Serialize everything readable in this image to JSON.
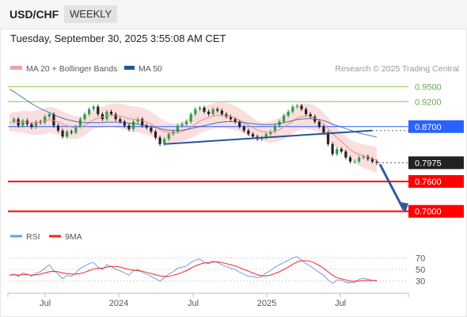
{
  "header": {
    "symbol": "USD/CHF",
    "period": "WEEKLY"
  },
  "datetime": "Tuesday, September 30, 2025 3:55:08 AM CET",
  "credit": "Research © 2025 Trading Central",
  "legend": {
    "ma": "MA 20 + Bollinger Bands",
    "ma50": "MA 50",
    "rsi": "RSI",
    "ma9": "9MA"
  },
  "colors": {
    "ma_band": "#f4a0a0",
    "ma50": "#27549c",
    "resistance": "#2962ff",
    "support": "#ff0000",
    "target_line": "#8bc34a",
    "candle_up": "#2e9e4a",
    "candle_down": "#222222",
    "projection": "#2f5c9e",
    "rsi": "#6d9ee8",
    "rsi_ma": "#ff2020"
  },
  "chart_data": {
    "type": "line",
    "title": "USD/CHF",
    "timeframe": "WEEKLY",
    "x_ticks": [
      "Jul",
      "2024",
      "Jul",
      "2025",
      "Jul"
    ],
    "ylim": [
      0.682,
      0.965
    ],
    "levels": [
      {
        "value": 0.95,
        "label": "0.9500",
        "kind": "target"
      },
      {
        "value": 0.92,
        "label": "0.9200",
        "kind": "target"
      },
      {
        "value": 0.87,
        "label": "0.8700",
        "kind": "resistance"
      },
      {
        "value": 0.7975,
        "label": "0.7975",
        "kind": "last"
      },
      {
        "value": 0.76,
        "label": "0.7600",
        "kind": "support"
      },
      {
        "value": 0.7,
        "label": "0.7000",
        "kind": "support"
      }
    ],
    "last_price": 0.7975,
    "price_path": [
      0.88,
      0.885,
      0.872,
      0.882,
      0.875,
      0.869,
      0.88,
      0.878,
      0.89,
      0.895,
      0.872,
      0.862,
      0.85,
      0.86,
      0.858,
      0.87,
      0.885,
      0.895,
      0.905,
      0.91,
      0.895,
      0.885,
      0.9,
      0.895,
      0.885,
      0.88,
      0.872,
      0.865,
      0.88,
      0.885,
      0.872,
      0.868,
      0.86,
      0.848,
      0.835,
      0.845,
      0.855,
      0.86,
      0.872,
      0.875,
      0.88,
      0.895,
      0.905,
      0.908,
      0.9,
      0.895,
      0.905,
      0.902,
      0.895,
      0.89,
      0.885,
      0.88,
      0.87,
      0.862,
      0.855,
      0.85,
      0.845,
      0.848,
      0.855,
      0.86,
      0.872,
      0.88,
      0.892,
      0.9,
      0.91,
      0.912,
      0.905,
      0.895,
      0.89,
      0.88,
      0.87,
      0.858,
      0.835,
      0.815,
      0.825,
      0.82,
      0.808,
      0.8,
      0.8,
      0.808,
      0.81,
      0.805,
      0.8,
      0.7975
    ],
    "ma20": [
      0.878,
      0.88,
      0.879,
      0.88,
      0.879,
      0.877,
      0.878,
      0.879,
      0.881,
      0.884,
      0.882,
      0.879,
      0.875,
      0.872,
      0.869,
      0.868,
      0.869,
      0.873,
      0.878,
      0.884,
      0.887,
      0.889,
      0.892,
      0.893,
      0.892,
      0.891,
      0.889,
      0.886,
      0.885,
      0.884,
      0.882,
      0.879,
      0.875,
      0.87,
      0.864,
      0.86,
      0.858,
      0.857,
      0.858,
      0.86,
      0.864,
      0.869,
      0.875,
      0.881,
      0.885,
      0.888,
      0.891,
      0.893,
      0.893,
      0.892,
      0.89,
      0.887,
      0.883,
      0.878,
      0.873,
      0.868,
      0.863,
      0.86,
      0.859,
      0.859,
      0.861,
      0.864,
      0.869,
      0.875,
      0.881,
      0.887,
      0.89,
      0.891,
      0.89,
      0.887,
      0.882,
      0.875,
      0.866,
      0.856,
      0.848,
      0.84,
      0.832,
      0.824,
      0.818,
      0.814,
      0.811,
      0.808,
      0.806,
      0.803
    ],
    "ma50": [
      0.945,
      0.94,
      0.934,
      0.928,
      0.922,
      0.916,
      0.911,
      0.906,
      0.902,
      0.898,
      0.894,
      0.89,
      0.887,
      0.884,
      0.882,
      0.88,
      0.879,
      0.878,
      0.878,
      0.878,
      0.878,
      0.878,
      0.879,
      0.879,
      0.879,
      0.879,
      0.878,
      0.877,
      0.876,
      0.875,
      0.874,
      0.872,
      0.87,
      0.868,
      0.866,
      0.864,
      0.863,
      0.862,
      0.862,
      0.863,
      0.864,
      0.866,
      0.868,
      0.87,
      0.872,
      0.874,
      0.876,
      0.878,
      0.879,
      0.88,
      0.88,
      0.88,
      0.879,
      0.878,
      0.877,
      0.876,
      0.875,
      0.874,
      0.874,
      0.874,
      0.875,
      0.876,
      0.878,
      0.88,
      0.882,
      0.884,
      0.885,
      0.886,
      0.886,
      0.885,
      0.884,
      0.882,
      0.879,
      0.875,
      0.872,
      0.869,
      0.866,
      0.863,
      0.86,
      0.857,
      0.855,
      0.853,
      0.851,
      0.849
    ],
    "rsi": {
      "ticks": [
        70,
        50,
        30
      ],
      "ylim": [
        20,
        80
      ],
      "values": [
        40,
        42,
        38,
        44,
        42,
        38,
        44,
        46,
        52,
        58,
        48,
        42,
        34,
        40,
        38,
        44,
        52,
        56,
        60,
        62,
        54,
        50,
        58,
        55,
        50,
        48,
        44,
        40,
        48,
        50,
        45,
        42,
        38,
        34,
        30,
        36,
        42,
        46,
        52,
        54,
        56,
        62,
        66,
        68,
        62,
        60,
        64,
        62,
        58,
        55,
        52,
        50,
        45,
        42,
        38,
        38,
        36,
        38,
        44,
        48,
        54,
        58,
        62,
        66,
        70,
        72,
        66,
        60,
        56,
        50,
        45,
        40,
        32,
        26,
        32,
        32,
        28,
        27,
        28,
        33,
        35,
        33,
        31,
        30
      ],
      "ma9": [
        40,
        41,
        40,
        41,
        41,
        40,
        41,
        42,
        44,
        46,
        47,
        46,
        44,
        43,
        42,
        42,
        43,
        45,
        48,
        51,
        52,
        52,
        54,
        55,
        55,
        54,
        52,
        50,
        49,
        48,
        47,
        45,
        43,
        41,
        39,
        38,
        38,
        40,
        42,
        45,
        48,
        52,
        56,
        59,
        61,
        62,
        63,
        63,
        62,
        60,
        58,
        56,
        53,
        50,
        47,
        44,
        41,
        39,
        39,
        40,
        43,
        46,
        50,
        54,
        59,
        63,
        65,
        65,
        64,
        61,
        57,
        52,
        46,
        40,
        36,
        34,
        32,
        30,
        30,
        30,
        31,
        31,
        31,
        31
      ]
    }
  }
}
